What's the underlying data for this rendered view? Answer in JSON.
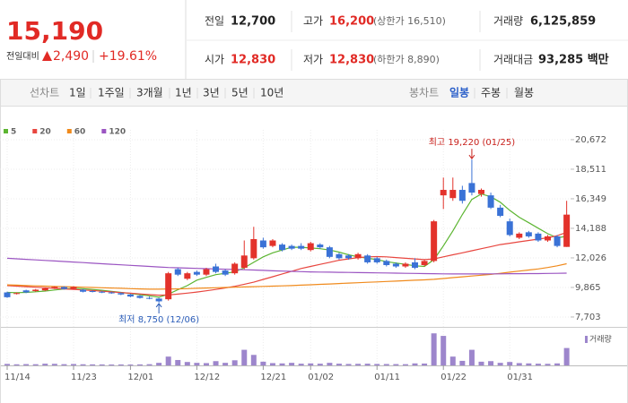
{
  "quote": {
    "price": "15,190",
    "change_label": "전일대비",
    "change": "2,490",
    "change_rate": "+19.61%",
    "info": [
      {
        "label": "전일",
        "value": "12,700"
      },
      {
        "label": "고가",
        "value": "16,200",
        "note": "(상한가 16,510)"
      },
      {
        "label": "거래량",
        "value": "6,125,859"
      },
      {
        "label": "시가",
        "value": "12,830"
      },
      {
        "label": "저가",
        "value": "12,830",
        "note": "(하한가 8,890)"
      },
      {
        "label": "거래대금",
        "value": "93,285 백만"
      }
    ]
  },
  "tabs": {
    "line_chart": {
      "label": "선차트",
      "options": [
        "1일",
        "1주일",
        "3개월",
        "1년",
        "3년",
        "5년",
        "10년"
      ]
    },
    "candle_chart": {
      "label": "봉차트",
      "options": [
        "일봉",
        "주봉",
        "월봉"
      ]
    }
  },
  "chart_data": {
    "type": "candlestick",
    "categories": [
      "11/14",
      null,
      null,
      null,
      null,
      null,
      null,
      "11/23",
      null,
      null,
      null,
      null,
      null,
      "12/01",
      null,
      null,
      null,
      null,
      null,
      null,
      "12/12",
      null,
      null,
      null,
      null,
      null,
      null,
      "12/21",
      null,
      null,
      null,
      null,
      "01/02",
      null,
      null,
      null,
      null,
      null,
      null,
      "01/11",
      null,
      null,
      null,
      null,
      null,
      null,
      "01/22",
      null,
      null,
      null,
      null,
      null,
      null,
      "01/31",
      null,
      null,
      null,
      null,
      null,
      null
    ],
    "open": [
      9500,
      9400,
      9650,
      9600,
      9650,
      9800,
      9900,
      9750,
      9700,
      9600,
      9550,
      9500,
      9450,
      9350,
      9250,
      9100,
      9050,
      9000,
      11200,
      10500,
      11000,
      10800,
      11400,
      11100,
      10900,
      11300,
      12000,
      13300,
      12900,
      13000,
      12900,
      12900,
      12600,
      13000,
      12800,
      12300,
      12200,
      12000,
      12200,
      12000,
      11800,
      11600,
      11400,
      11700,
      11500,
      11800,
      16600,
      16400,
      17000,
      17500,
      16700,
      16600,
      15700,
      14700,
      13500,
      13900,
      13800,
      13300,
      13600,
      12830
    ],
    "high": [
      9550,
      9500,
      9700,
      9750,
      9850,
      9950,
      9950,
      9950,
      9750,
      9650,
      9600,
      9550,
      9500,
      9400,
      9300,
      9200,
      9100,
      11000,
      11300,
      11000,
      11100,
      11300,
      11600,
      11200,
      11700,
      13300,
      14300,
      13500,
      13400,
      13100,
      13000,
      13100,
      13200,
      13100,
      12900,
      12400,
      12300,
      12400,
      12300,
      12100,
      11900,
      11700,
      11700,
      12000,
      11900,
      14800,
      17900,
      17900,
      17300,
      19220,
      17100,
      16800,
      15900,
      14900,
      13900,
      14000,
      13900,
      13700,
      13700,
      16200
    ],
    "low": [
      9100,
      9350,
      9450,
      9550,
      9600,
      9750,
      9700,
      9700,
      9500,
      9500,
      9450,
      9400,
      9300,
      9150,
      9050,
      9000,
      8750,
      8900,
      10700,
      10400,
      10700,
      10700,
      10900,
      10700,
      10800,
      11200,
      11900,
      12700,
      12800,
      12500,
      12600,
      12600,
      12500,
      12700,
      12000,
      11900,
      11900,
      11900,
      11600,
      11600,
      11400,
      11300,
      11300,
      11200,
      11400,
      11700,
      15600,
      16200,
      16000,
      16600,
      16500,
      15600,
      15000,
      13600,
      13400,
      13500,
      13200,
      13200,
      12800,
      12830
    ],
    "close": [
      9150,
      9450,
      9500,
      9700,
      9800,
      9900,
      9750,
      9900,
      9550,
      9550,
      9500,
      9450,
      9350,
      9200,
      9100,
      9050,
      8850,
      10900,
      10800,
      10900,
      10800,
      11200,
      11000,
      10800,
      11600,
      12200,
      13400,
      12800,
      13300,
      12600,
      12700,
      12700,
      13100,
      12800,
      12100,
      12000,
      12000,
      12300,
      11700,
      11700,
      11500,
      11400,
      11600,
      11300,
      11800,
      14700,
      17000,
      17000,
      16200,
      16800,
      17000,
      15700,
      15100,
      13700,
      13800,
      13600,
      13300,
      13600,
      12900,
      15190
    ],
    "up_color": "#e3322b",
    "down_color": "#3a72d6",
    "ylim": [
      6980,
      21390
    ],
    "yticks": [
      {
        "value": 7703,
        "label": "7,703"
      },
      {
        "value": 9865,
        "label": "9,865"
      },
      {
        "value": 12026,
        "label": "12,026"
      },
      {
        "value": 14188,
        "label": "14,188"
      },
      {
        "value": 16349,
        "label": "16,349"
      },
      {
        "value": 18511,
        "label": "18,511"
      },
      {
        "value": 20672,
        "label": "20,672"
      }
    ],
    "grid": true,
    "series": [
      {
        "name": "5",
        "color": "#5cb531",
        "values": [
          9500,
          9480,
          9500,
          9550,
          9600,
          9680,
          9750,
          9800,
          9780,
          9720,
          9660,
          9580,
          9500,
          9420,
          9340,
          9250,
          9150,
          9380,
          9700,
          10000,
          10400,
          10600,
          10800,
          10900,
          11000,
          11300,
          11700,
          12100,
          12400,
          12600,
          12800,
          12800,
          12750,
          12700,
          12600,
          12450,
          12250,
          12100,
          12000,
          11900,
          11750,
          11650,
          11550,
          11450,
          11400,
          11900,
          12900,
          14000,
          15200,
          16300,
          16700,
          16500,
          16100,
          15500,
          15000,
          14600,
          14200,
          13800,
          13500,
          13600
        ]
      },
      {
        "name": "20",
        "color": "#e8463f",
        "values": [
          10000,
          9960,
          9920,
          9880,
          9840,
          9800,
          9760,
          9720,
          9680,
          9640,
          9590,
          9540,
          9490,
          9440,
          9390,
          9340,
          9300,
          9320,
          9380,
          9450,
          9530,
          9620,
          9720,
          9830,
          9950,
          10100,
          10250,
          10450,
          10650,
          10850,
          11050,
          11250,
          11400,
          11550,
          11700,
          11850,
          11950,
          12050,
          12100,
          12120,
          12100,
          12050,
          12000,
          11950,
          11900,
          11950,
          12100,
          12250,
          12400,
          12550,
          12700,
          12850,
          13000,
          13100,
          13200,
          13300,
          13400,
          13500,
          13650,
          13900
        ]
      },
      {
        "name": "60",
        "color": "#f08a1c",
        "values": [
          10050,
          10030,
          10000,
          9980,
          9960,
          9940,
          9920,
          9900,
          9880,
          9860,
          9840,
          9820,
          9800,
          9780,
          9760,
          9740,
          9740,
          9750,
          9760,
          9780,
          9800,
          9820,
          9840,
          9860,
          9880,
          9900,
          9920,
          9940,
          9960,
          9980,
          10000,
          10030,
          10060,
          10090,
          10120,
          10150,
          10180,
          10210,
          10240,
          10270,
          10300,
          10330,
          10360,
          10390,
          10420,
          10460,
          10520,
          10580,
          10640,
          10700,
          10760,
          10820,
          10900,
          10980,
          11060,
          11140,
          11220,
          11320,
          11450,
          11600
        ]
      },
      {
        "name": "120",
        "color": "#9b55c2",
        "values": [
          12000,
          11960,
          11920,
          11880,
          11840,
          11800,
          11760,
          11720,
          11680,
          11640,
          11600,
          11560,
          11520,
          11480,
          11440,
          11400,
          11360,
          11320,
          11300,
          11280,
          11260,
          11240,
          11220,
          11200,
          11180,
          11160,
          11140,
          11110,
          11080,
          11060,
          11040,
          11020,
          11000,
          10990,
          10980,
          10970,
          10960,
          10950,
          10940,
          10930,
          10920,
          10910,
          10900,
          10890,
          10880,
          10870,
          10860,
          10850,
          10850,
          10850,
          10850,
          10860,
          10860,
          10870,
          10870,
          10880,
          10880,
          10890,
          10900,
          10910
        ]
      }
    ],
    "volume": {
      "name": "거래량",
      "color": "#9d86cc",
      "ylim": [
        0,
        12000000
      ],
      "values": [
        520000,
        380000,
        450000,
        410000,
        600000,
        550000,
        420000,
        480000,
        390000,
        360000,
        340000,
        310000,
        330000,
        300000,
        350000,
        420000,
        900000,
        3100000,
        1900000,
        1200000,
        900000,
        800000,
        1500000,
        900000,
        1800000,
        5500000,
        3700000,
        1300000,
        800000,
        700000,
        900000,
        600000,
        700000,
        600000,
        900000,
        600000,
        500000,
        550000,
        600000,
        500000,
        480000,
        450000,
        420000,
        700000,
        650000,
        11300000,
        10400000,
        3100000,
        1600000,
        5500000,
        1300000,
        1500000,
        900000,
        1200000,
        800000,
        700000,
        600000,
        550000,
        700000,
        6125859
      ]
    },
    "annotations": {
      "high": "최고 19,220 (01/25)",
      "low": "최저 8,750 (12/06)"
    }
  }
}
